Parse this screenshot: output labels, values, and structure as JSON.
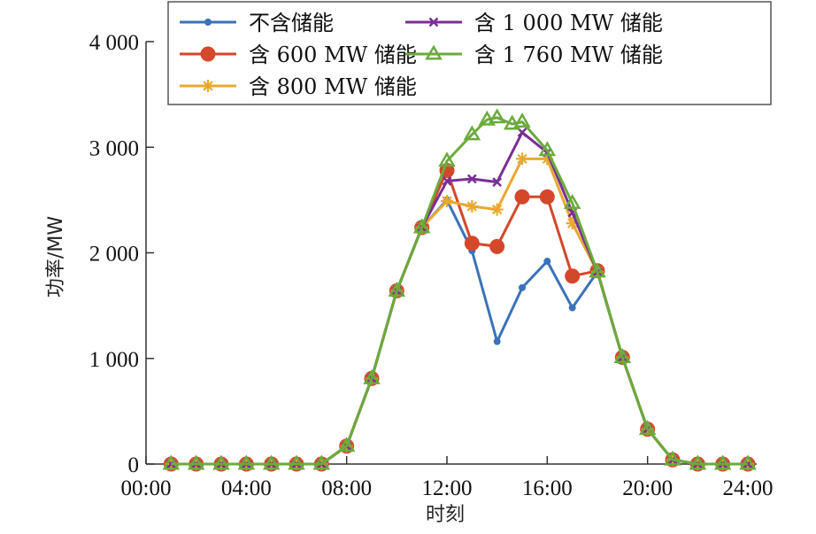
{
  "chart_data": {
    "type": "line",
    "title": "",
    "xlabel": "时刻",
    "ylabel": "功率/MW",
    "xlim": [
      0,
      24
    ],
    "ylim": [
      0,
      4000
    ],
    "x_ticks": [
      0,
      4,
      8,
      12,
      16,
      20,
      24
    ],
    "x_tick_labels": [
      "00:00",
      "04:00",
      "08:00",
      "12:00",
      "16:00",
      "20:00",
      "24:00"
    ],
    "y_ticks": [
      0,
      1000,
      2000,
      3000,
      4000
    ],
    "y_tick_labels": [
      "0",
      "1 000",
      "2 000",
      "3 000",
      "4 000"
    ],
    "grid": false,
    "legend_position": "top",
    "series": [
      {
        "name": "不含储能",
        "color": "#3b72b9",
        "marker": "dot",
        "x": [
          1,
          2,
          3,
          4,
          5,
          6,
          7,
          8,
          9,
          10,
          11,
          12,
          13,
          14,
          15,
          16,
          17,
          18,
          19,
          20,
          21,
          22,
          23,
          24
        ],
        "values": [
          0,
          0,
          0,
          0,
          0,
          0,
          0,
          170,
          810,
          1640,
          2240,
          2500,
          2020,
          1160,
          1670,
          1920,
          1480,
          1820,
          1010,
          330,
          40,
          0,
          0,
          0
        ]
      },
      {
        "name": "含 600 MW 储能",
        "color": "#d4472a",
        "marker": "circle",
        "x": [
          1,
          2,
          3,
          4,
          5,
          6,
          7,
          8,
          9,
          10,
          11,
          12,
          13,
          14,
          15,
          16,
          17,
          18,
          19,
          20,
          21,
          22,
          23,
          24
        ],
        "values": [
          0,
          0,
          0,
          0,
          0,
          0,
          0,
          170,
          810,
          1640,
          2240,
          2780,
          2090,
          2060,
          2530,
          2530,
          1780,
          1830,
          1010,
          330,
          40,
          0,
          0,
          0
        ]
      },
      {
        "name": "含 800 MW 储能",
        "color": "#e9a830",
        "marker": "asterisk",
        "x": [
          1,
          2,
          3,
          4,
          5,
          6,
          7,
          8,
          9,
          10,
          11,
          12,
          13,
          14,
          15,
          16,
          17,
          18,
          19,
          20,
          21,
          22,
          23,
          24
        ],
        "values": [
          0,
          0,
          0,
          0,
          0,
          0,
          0,
          170,
          810,
          1640,
          2240,
          2490,
          2440,
          2410,
          2890,
          2890,
          2280,
          1820,
          1010,
          330,
          40,
          0,
          0,
          0
        ]
      },
      {
        "name": "含 1 000 MW 储能",
        "color": "#7a2f96",
        "marker": "x",
        "x": [
          1,
          2,
          3,
          4,
          5,
          6,
          7,
          8,
          9,
          10,
          11,
          12,
          13,
          14,
          15,
          16,
          17,
          18,
          19,
          20,
          21,
          22,
          23,
          24
        ],
        "values": [
          0,
          0,
          0,
          0,
          0,
          0,
          0,
          170,
          810,
          1640,
          2240,
          2680,
          2700,
          2670,
          3140,
          2950,
          2380,
          1820,
          1010,
          330,
          40,
          0,
          0,
          0
        ]
      },
      {
        "name": "含 1 760 MW 储能",
        "color": "#6aab3c",
        "marker": "triangle",
        "x": [
          1,
          2,
          3,
          4,
          5,
          6,
          7,
          8,
          9,
          10,
          11,
          12,
          13,
          13.6,
          14,
          14.6,
          15,
          16,
          17,
          18,
          19,
          20,
          21,
          22,
          23,
          24
        ],
        "values": [
          0,
          0,
          0,
          0,
          0,
          0,
          0,
          170,
          810,
          1640,
          2240,
          2870,
          3120,
          3260,
          3280,
          3220,
          3240,
          2970,
          2470,
          1820,
          1010,
          330,
          40,
          0,
          0,
          0
        ]
      }
    ]
  }
}
